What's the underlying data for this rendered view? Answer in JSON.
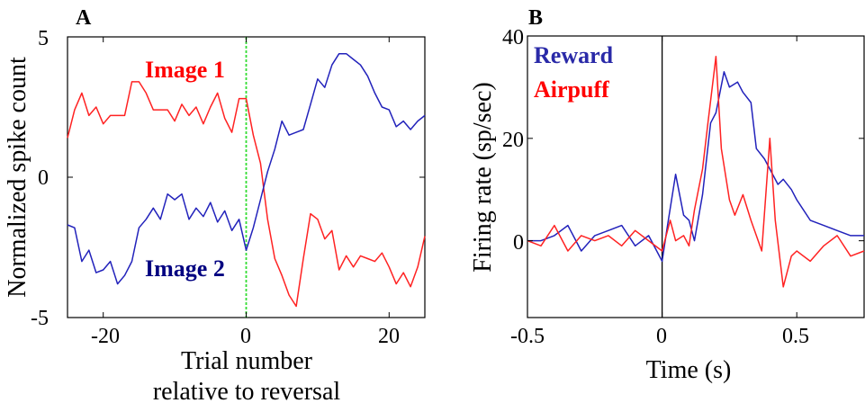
{
  "chart_data": [
    {
      "panel_label": "A",
      "type": "line",
      "xlabel": [
        "Trial number",
        "relative to reversal"
      ],
      "ylabel": "Normalized spike count",
      "xlim": [
        -25,
        25
      ],
      "ylim": [
        -5,
        5
      ],
      "xticks": [
        "-20",
        "0",
        "20"
      ],
      "yticks": [
        "5",
        "0",
        "-5"
      ],
      "reference_line": {
        "x": 0,
        "color": "#33dd33",
        "style": "dashed"
      },
      "series": [
        {
          "name": "Image 1",
          "color": "#ff2222",
          "label_color": "#ff0000",
          "x": [
            -25,
            -24,
            -23,
            -22,
            -21,
            -20,
            -19,
            -18,
            -17,
            -16,
            -15,
            -14,
            -13,
            -12,
            -11,
            -10,
            -9,
            -8,
            -7,
            -6,
            -5,
            -4,
            -3,
            -2,
            -1,
            0,
            1,
            2,
            3,
            4,
            5,
            6,
            7,
            8,
            9,
            10,
            11,
            12,
            13,
            14,
            15,
            16,
            17,
            18,
            19,
            20,
            21,
            22,
            23,
            24,
            25
          ],
          "y": [
            1.4,
            2.4,
            3.0,
            2.2,
            2.5,
            1.9,
            2.2,
            2.2,
            2.2,
            3.4,
            3.4,
            3.0,
            2.4,
            2.4,
            2.4,
            2.0,
            2.6,
            2.2,
            2.5,
            1.9,
            2.5,
            3.0,
            2.1,
            1.6,
            2.8,
            2.8,
            1.5,
            0.5,
            -1.5,
            -2.9,
            -3.5,
            -4.2,
            -4.6,
            -2.9,
            -1.3,
            -1.5,
            -2.2,
            -1.9,
            -3.3,
            -2.8,
            -3.2,
            -2.8,
            -2.9,
            -3.0,
            -2.7,
            -3.2,
            -3.8,
            -3.4,
            -3.9,
            -3.2,
            -2.1
          ]
        },
        {
          "name": "Image 2",
          "color": "#2222bb",
          "label_color": "#000080",
          "x": [
            -25,
            -24,
            -23,
            -22,
            -21,
            -20,
            -19,
            -18,
            -17,
            -16,
            -15,
            -14,
            -13,
            -12,
            -11,
            -10,
            -9,
            -8,
            -7,
            -6,
            -5,
            -4,
            -3,
            -2,
            -1,
            0,
            1,
            2,
            3,
            4,
            5,
            6,
            7,
            8,
            9,
            10,
            11,
            12,
            13,
            14,
            15,
            16,
            17,
            18,
            19,
            20,
            21,
            22,
            23,
            24,
            25
          ],
          "y": [
            -1.7,
            -1.8,
            -3.0,
            -2.6,
            -3.4,
            -3.3,
            -3.0,
            -3.8,
            -3.5,
            -3.0,
            -1.8,
            -1.5,
            -1.1,
            -1.5,
            -0.6,
            -0.8,
            -0.6,
            -1.5,
            -1.1,
            -1.4,
            -0.9,
            -1.6,
            -1.2,
            -1.9,
            -1.5,
            -2.6,
            -1.8,
            -0.8,
            0.2,
            1.0,
            2.0,
            1.5,
            1.6,
            1.7,
            2.6,
            3.5,
            3.2,
            4.0,
            4.4,
            4.4,
            4.2,
            4.0,
            3.6,
            3.0,
            2.5,
            2.4,
            1.8,
            2.0,
            1.7,
            2.0,
            2.2
          ]
        }
      ]
    },
    {
      "panel_label": "B",
      "type": "line",
      "xlabel": "Time (s)",
      "ylabel": "Firing rate (sp/sec)",
      "xlim": [
        -0.5,
        0.75
      ],
      "ylim": [
        -15,
        40
      ],
      "xticks": [
        "-0.5",
        "0",
        "0.5"
      ],
      "yticks": [
        "40",
        "20",
        "0"
      ],
      "reference_line": {
        "x": 0,
        "color": "#000000",
        "style": "solid"
      },
      "series": [
        {
          "name": "Reward",
          "color": "#2222bb",
          "label_color": "#2a2aa8",
          "x": [
            -0.5,
            -0.45,
            -0.4,
            -0.35,
            -0.3,
            -0.25,
            -0.2,
            -0.15,
            -0.1,
            -0.05,
            0,
            0.02,
            0.05,
            0.08,
            0.1,
            0.12,
            0.15,
            0.18,
            0.2,
            0.23,
            0.25,
            0.28,
            0.3,
            0.33,
            0.35,
            0.38,
            0.4,
            0.43,
            0.45,
            0.48,
            0.5,
            0.55,
            0.6,
            0.65,
            0.7,
            0.75
          ],
          "y": [
            0,
            0,
            1,
            3,
            -2,
            1,
            2,
            3,
            -1,
            1,
            -4,
            3,
            13,
            5,
            4,
            0,
            9,
            23,
            25,
            33,
            30,
            31,
            29,
            27,
            18,
            16,
            14,
            11,
            12,
            10,
            8,
            4,
            3,
            2,
            1,
            1
          ]
        },
        {
          "name": "Airpuff",
          "color": "#ff2222",
          "label_color": "#ff0000",
          "x": [
            -0.5,
            -0.45,
            -0.4,
            -0.35,
            -0.3,
            -0.25,
            -0.2,
            -0.15,
            -0.1,
            -0.05,
            0,
            0.03,
            0.05,
            0.08,
            0.1,
            0.12,
            0.15,
            0.17,
            0.2,
            0.22,
            0.25,
            0.27,
            0.3,
            0.33,
            0.35,
            0.37,
            0.4,
            0.42,
            0.45,
            0.48,
            0.5,
            0.55,
            0.6,
            0.65,
            0.7,
            0.75
          ],
          "y": [
            0,
            -1,
            3,
            -2,
            1,
            0,
            1,
            -1,
            2,
            0,
            -2,
            4,
            0,
            1,
            -1,
            6,
            14,
            23,
            36,
            18,
            8,
            5,
            9,
            4,
            1,
            -2,
            20,
            4,
            -9,
            -3,
            -2,
            -4,
            -1,
            1,
            -3,
            -2
          ]
        }
      ]
    }
  ]
}
